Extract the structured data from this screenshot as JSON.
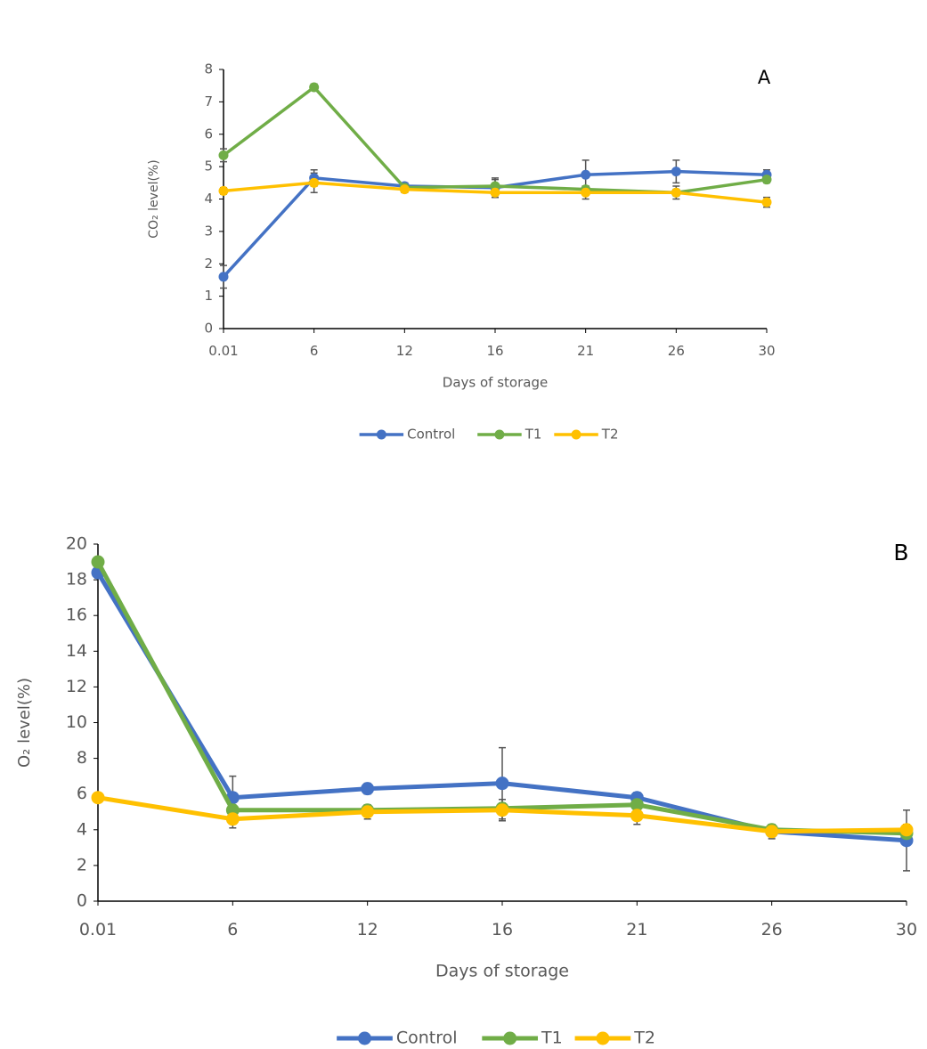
{
  "chart_data": [
    {
      "type": "line",
      "annotation": "A",
      "x_label": "Days of storage",
      "y_label": "CO₂ level(%)",
      "categories": [
        "0.01",
        "6",
        "12",
        "16",
        "21",
        "26",
        "30"
      ],
      "ylim": [
        0,
        8
      ],
      "yticks": [
        0,
        1,
        2,
        3,
        4,
        5,
        6,
        7,
        8
      ],
      "grid": false,
      "legend": "bottom",
      "series": [
        {
          "name": "Control",
          "color": "#4472c4",
          "values": [
            1.6,
            4.65,
            4.4,
            4.35,
            4.75,
            4.85,
            4.75
          ],
          "errors": [
            0.35,
            0.25,
            0.1,
            0.3,
            0.45,
            0.35,
            0.15
          ]
        },
        {
          "name": "T1",
          "color": "#70ad47",
          "values": [
            5.35,
            7.45,
            4.35,
            4.4,
            4.3,
            4.2,
            4.6
          ],
          "errors": [
            0.2,
            0.1,
            0.1,
            0.2,
            0.1,
            0.1,
            0.1
          ]
        },
        {
          "name": "T2",
          "color": "#ffc000",
          "values": [
            4.25,
            4.5,
            4.3,
            4.2,
            4.2,
            4.2,
            3.9
          ],
          "errors": [
            0.1,
            0.3,
            0.1,
            0.15,
            0.2,
            0.2,
            0.15
          ]
        }
      ]
    },
    {
      "type": "line",
      "annotation": "B",
      "x_label": "Days of storage",
      "y_label": "O₂ level(%)",
      "categories": [
        "0.01",
        "6",
        "12",
        "16",
        "21",
        "26",
        "30"
      ],
      "ylim": [
        0,
        20
      ],
      "yticks": [
        0,
        2,
        4,
        6,
        8,
        10,
        12,
        14,
        16,
        18,
        20
      ],
      "grid": false,
      "legend": "bottom",
      "series": [
        {
          "name": "Control",
          "color": "#4472c4",
          "values": [
            18.4,
            5.8,
            6.3,
            6.6,
            5.8,
            3.9,
            3.4
          ],
          "errors": [
            0.3,
            1.2,
            0.3,
            2.0,
            0.3,
            0.4,
            1.7
          ]
        },
        {
          "name": "T1",
          "color": "#70ad47",
          "values": [
            19.0,
            5.1,
            5.1,
            5.2,
            5.4,
            4.0,
            3.8
          ],
          "errors": [
            0.2,
            0.3,
            0.3,
            0.3,
            0.3,
            0.3,
            0.3
          ]
        },
        {
          "name": "T2",
          "color": "#ffc000",
          "values": [
            5.8,
            4.6,
            5.0,
            5.1,
            4.8,
            3.9,
            4.0
          ],
          "errors": [
            0.2,
            0.5,
            0.4,
            0.6,
            0.5,
            0.3,
            0.3
          ]
        }
      ]
    }
  ]
}
